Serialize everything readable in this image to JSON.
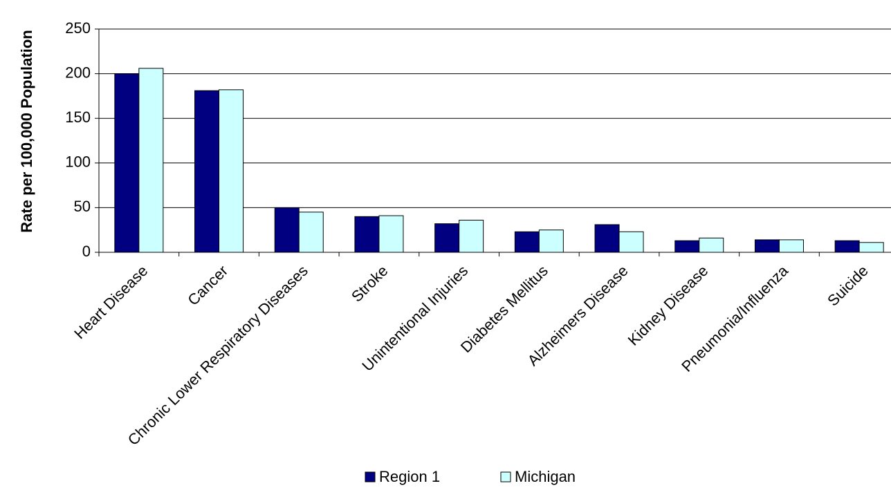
{
  "chart_data": {
    "type": "bar",
    "y_label": "Rate per 100,000 Population",
    "categories": [
      "Heart Disease",
      "Cancer",
      "Chronic Lower Respiratory Diseases",
      "Stroke",
      "Unintentional Injuries",
      "Diabetes Mellitus",
      "Alzheimers Disease",
      "Kidney Disease",
      "Pneumonia/Influenza",
      "Suicide"
    ],
    "series": [
      {
        "name": "Region 1",
        "color": "#000080",
        "values": [
          200,
          181,
          50,
          40,
          32,
          23,
          31,
          13,
          14,
          13
        ]
      },
      {
        "name": "Michigan",
        "color": "#ccffff",
        "values": [
          206,
          182,
          45,
          41,
          36,
          25,
          23,
          16,
          14,
          11
        ]
      }
    ],
    "ylim": [
      0,
      250
    ],
    "yticks": [
      0,
      50,
      100,
      150,
      200,
      250
    ],
    "grid": true,
    "legend": "bottom"
  }
}
